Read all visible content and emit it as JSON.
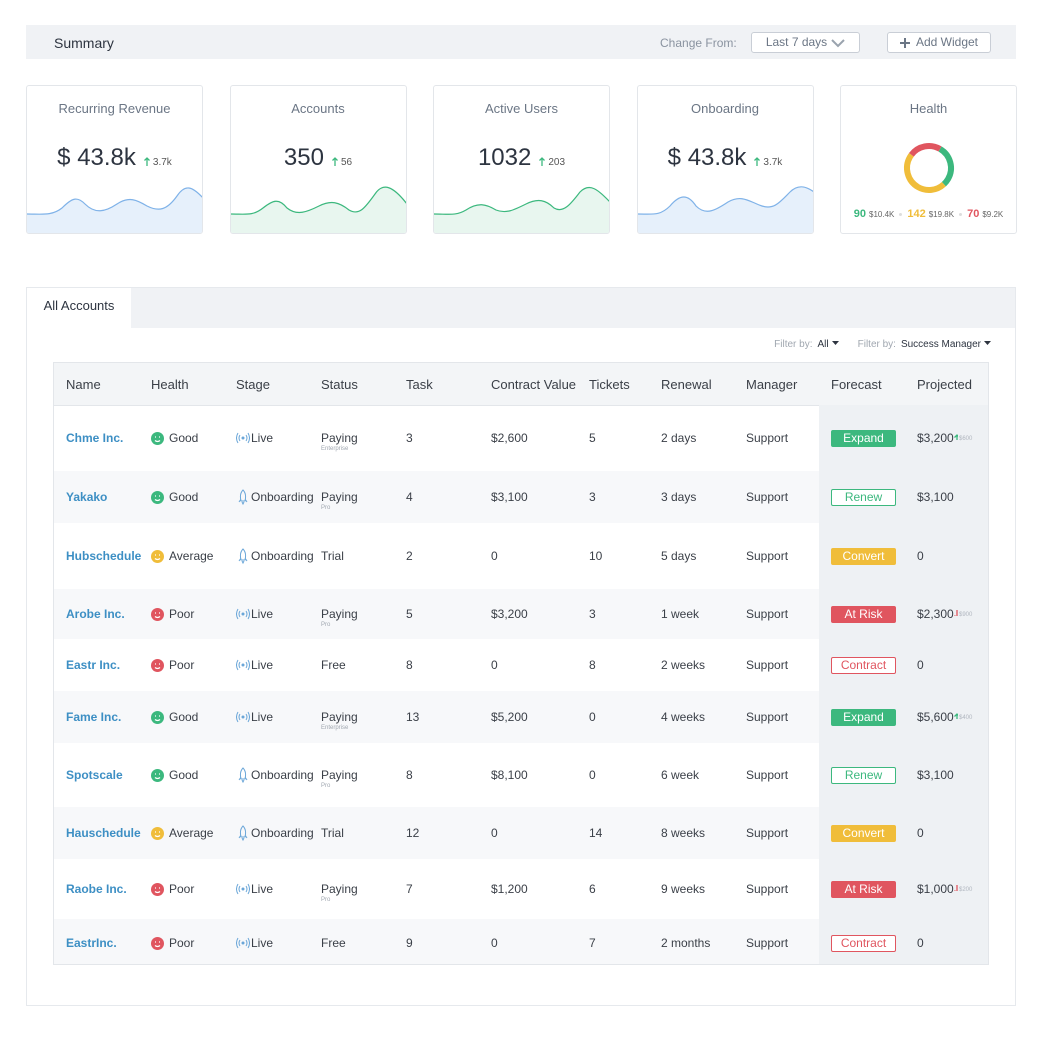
{
  "header": {
    "title": "Summary",
    "change_from_label": "Change From:",
    "range": "Last 7 days",
    "add_widget": "Add Widget"
  },
  "widgets": [
    {
      "title": "Recurring Revenue",
      "value": "$ 43.8k",
      "delta": "3.7k",
      "fill": true
    },
    {
      "title": "Accounts",
      "value": "350",
      "delta": "56",
      "fill": false
    },
    {
      "title": "Active Users",
      "value": "1032",
      "delta": "203",
      "fill": false
    },
    {
      "title": "Onboarding",
      "value": "$ 43.8k",
      "delta": "3.7k",
      "fill": true
    }
  ],
  "health": {
    "title": "Health",
    "segments": [
      {
        "count": 90,
        "amount": "$10.4K",
        "color": "#3cb87e"
      },
      {
        "count": 142,
        "amount": "$19.8K",
        "color": "#f0bd3a"
      },
      {
        "count": 70,
        "amount": "$9.2K",
        "color": "#e0555f"
      }
    ]
  },
  "tab": "All Accounts",
  "filters": [
    {
      "label": "Filter by:",
      "value": "All"
    },
    {
      "label": "Filter by:",
      "value": "Success Manager"
    }
  ],
  "table": {
    "columns": [
      "Name",
      "Health",
      "Stage",
      "Status",
      "Task",
      "Contract Value",
      "Tickets",
      "Renewal",
      "Manager",
      "Forecast",
      "Projected"
    ],
    "rows": [
      {
        "name": "Chme Inc.",
        "health": "Good",
        "health_color": "#3cb87e",
        "stage": "Live",
        "stage_icon": "signal",
        "status": "Paying",
        "status_sub": "Enterprise",
        "task": 3,
        "contract": "$2,600",
        "tickets": 5,
        "renewal": "2 days",
        "manager": "Support",
        "forecast": "Expand",
        "forecast_color": "#3cb87e",
        "forecast_filled": true,
        "projected": "$3,200",
        "projected_delta": "$600",
        "delta_color": "#3cb87e"
      },
      {
        "name": "Yakako",
        "health": "Good",
        "health_color": "#3cb87e",
        "stage": "Onboarding",
        "stage_icon": "rocket",
        "status": "Paying",
        "status_sub": "Pro",
        "task": 4,
        "contract": "$3,100",
        "tickets": 3,
        "renewal": "3 days",
        "manager": "Support",
        "forecast": "Renew",
        "forecast_color": "#3cb87e",
        "forecast_filled": false,
        "projected": "$3,100"
      },
      {
        "name": "Hubschedule",
        "health": "Average",
        "health_color": "#f0bd3a",
        "stage": "Onboarding",
        "stage_icon": "rocket",
        "status": "Trial",
        "task": 2,
        "contract": "0",
        "tickets": 10,
        "renewal": "5 days",
        "manager": "Support",
        "forecast": "Convert",
        "forecast_color": "#f0bd3a",
        "forecast_filled": true,
        "projected": "0"
      },
      {
        "name": "Arobe Inc.",
        "health": "Poor",
        "health_color": "#e0555f",
        "stage": "Live",
        "stage_icon": "signal",
        "status": "Paying",
        "status_sub": "Pro",
        "task": 5,
        "contract": "$3,200",
        "tickets": 3,
        "renewal": "1 week",
        "manager": "Support",
        "forecast": "At Risk",
        "forecast_color": "#e0555f",
        "forecast_filled": true,
        "projected": "$2,300",
        "projected_delta": "$900",
        "delta_color": "#e0555f"
      },
      {
        "name": "Eastr Inc.",
        "health": "Poor",
        "health_color": "#e0555f",
        "stage": "Live",
        "stage_icon": "signal",
        "status": "Free",
        "task": 8,
        "contract": "0",
        "tickets": 8,
        "renewal": "2 weeks",
        "manager": "Support",
        "forecast": "Contract",
        "forecast_color": "#e0555f",
        "forecast_filled": false,
        "projected": "0"
      },
      {
        "name": "Fame Inc.",
        "health": "Good",
        "health_color": "#3cb87e",
        "stage": "Live",
        "stage_icon": "signal",
        "status": "Paying",
        "status_sub": "Enterprise",
        "task": 13,
        "contract": "$5,200",
        "tickets": 0,
        "renewal": "4 weeks",
        "manager": "Support",
        "forecast": "Expand",
        "forecast_color": "#3cb87e",
        "forecast_filled": true,
        "projected": "$5,600",
        "projected_delta": "$400",
        "delta_color": "#3cb87e"
      },
      {
        "name": "Spotscale",
        "health": "Good",
        "health_color": "#3cb87e",
        "stage": "Onboarding",
        "stage_icon": "rocket",
        "status": "Paying",
        "status_sub": "Pro",
        "task": 8,
        "contract": "$8,100",
        "tickets": 0,
        "renewal": "6 week",
        "manager": "Support",
        "forecast": "Renew",
        "forecast_color": "#3cb87e",
        "forecast_filled": false,
        "projected": "$3,100"
      },
      {
        "name": "Hauschedule",
        "health": "Average",
        "health_color": "#f0bd3a",
        "stage": "Onboarding",
        "stage_icon": "rocket",
        "status": "Trial",
        "task": 12,
        "contract": "0",
        "tickets": 14,
        "renewal": "8 weeks",
        "manager": "Support",
        "forecast": "Convert",
        "forecast_color": "#f0bd3a",
        "forecast_filled": true,
        "projected": "0"
      },
      {
        "name": "Raobe Inc.",
        "health": "Poor",
        "health_color": "#e0555f",
        "stage": "Live",
        "stage_icon": "signal",
        "status": "Paying",
        "status_sub": "Pro",
        "task": 7,
        "contract": "$1,200",
        "tickets": 6,
        "renewal": "9 weeks",
        "manager": "Support",
        "forecast": "At Risk",
        "forecast_color": "#e0555f",
        "forecast_filled": true,
        "projected": "$1,000",
        "projected_delta": "$200",
        "delta_color": "#e0555f"
      },
      {
        "name": "EastrInc.",
        "health": "Poor",
        "health_color": "#e0555f",
        "stage": "Live",
        "stage_icon": "signal",
        "status": "Free",
        "task": 9,
        "contract": "0",
        "tickets": 7,
        "renewal": "2 months",
        "manager": "Support",
        "forecast": "Contract",
        "forecast_color": "#e0555f",
        "forecast_filled": false,
        "projected": "0"
      }
    ]
  }
}
